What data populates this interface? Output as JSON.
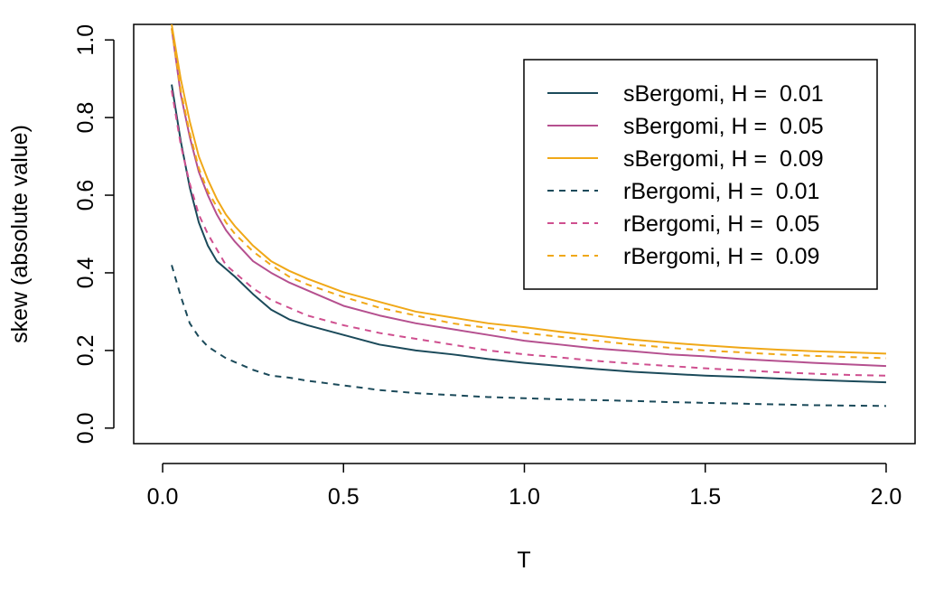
{
  "chart_data": {
    "type": "line",
    "title": "",
    "xlabel": "T",
    "ylabel": "skew (absolute value)",
    "xlim": [
      -0.08,
      2.08
    ],
    "ylim": [
      -0.04,
      1.04
    ],
    "xticks": [
      0.0,
      0.5,
      1.0,
      1.5,
      2.0
    ],
    "xtick_labels": [
      "0.0",
      "0.5",
      "1.0",
      "1.5",
      "2.0"
    ],
    "yticks": [
      0.0,
      0.2,
      0.4,
      0.6,
      0.8,
      1.0
    ],
    "ytick_labels": [
      "0.0",
      "0.2",
      "0.4",
      "0.6",
      "0.8",
      "1.0"
    ],
    "grid": false,
    "legend_position": "top-right",
    "x": [
      0.025,
      0.05,
      0.075,
      0.1,
      0.125,
      0.15,
      0.175,
      0.2,
      0.25,
      0.3,
      0.35,
      0.4,
      0.5,
      0.6,
      0.7,
      0.8,
      0.9,
      1.0,
      1.1,
      1.2,
      1.3,
      1.4,
      1.5,
      1.6,
      1.7,
      1.8,
      1.9,
      2.0
    ],
    "series": [
      {
        "name": "sBergomi, H =  0.01",
        "color": "#1b4a5a",
        "dash": "solid",
        "values": [
          0.885,
          0.74,
          0.62,
          0.53,
          0.47,
          0.43,
          0.41,
          0.39,
          0.345,
          0.305,
          0.28,
          0.265,
          0.24,
          0.215,
          0.2,
          0.19,
          0.178,
          0.168,
          0.16,
          0.152,
          0.145,
          0.14,
          0.135,
          0.132,
          0.128,
          0.124,
          0.121,
          0.118
        ]
      },
      {
        "name": "sBergomi, H =  0.05",
        "color": "#b5508f",
        "dash": "solid",
        "values": [
          1.03,
          0.86,
          0.75,
          0.66,
          0.6,
          0.55,
          0.51,
          0.48,
          0.43,
          0.4,
          0.375,
          0.355,
          0.315,
          0.29,
          0.27,
          0.255,
          0.24,
          0.225,
          0.215,
          0.205,
          0.198,
          0.19,
          0.185,
          0.178,
          0.173,
          0.168,
          0.164,
          0.16
        ]
      },
      {
        "name": "sBergomi, H =  0.09",
        "color": "#f0a818",
        "dash": "solid",
        "values": [
          1.04,
          0.9,
          0.79,
          0.7,
          0.64,
          0.59,
          0.55,
          0.52,
          0.47,
          0.43,
          0.405,
          0.385,
          0.35,
          0.325,
          0.3,
          0.285,
          0.27,
          0.26,
          0.248,
          0.238,
          0.228,
          0.22,
          0.213,
          0.207,
          0.202,
          0.198,
          0.195,
          0.192
        ]
      },
      {
        "name": "rBergomi, H =  0.01",
        "color": "#1b4a5a",
        "dash": "dashed",
        "values": [
          0.42,
          0.34,
          0.27,
          0.235,
          0.21,
          0.195,
          0.18,
          0.17,
          0.15,
          0.135,
          0.13,
          0.122,
          0.11,
          0.098,
          0.09,
          0.085,
          0.08,
          0.077,
          0.074,
          0.072,
          0.07,
          0.067,
          0.065,
          0.063,
          0.061,
          0.059,
          0.058,
          0.057
        ]
      },
      {
        "name": "rBergomi, H =  0.05",
        "color": "#cf4f8f",
        "dash": "dashed",
        "values": [
          0.87,
          0.73,
          0.63,
          0.55,
          0.5,
          0.46,
          0.42,
          0.4,
          0.36,
          0.33,
          0.31,
          0.29,
          0.265,
          0.245,
          0.23,
          0.215,
          0.2,
          0.19,
          0.182,
          0.173,
          0.166,
          0.16,
          0.154,
          0.149,
          0.144,
          0.14,
          0.137,
          0.135
        ]
      },
      {
        "name": "rBergomi, H =  0.09",
        "color": "#f0a818",
        "dash": "dashed",
        "values": [
          1.03,
          0.87,
          0.76,
          0.67,
          0.61,
          0.57,
          0.53,
          0.5,
          0.455,
          0.42,
          0.39,
          0.37,
          0.338,
          0.31,
          0.29,
          0.27,
          0.258,
          0.245,
          0.235,
          0.225,
          0.215,
          0.207,
          0.2,
          0.195,
          0.19,
          0.186,
          0.183,
          0.18
        ]
      }
    ]
  }
}
